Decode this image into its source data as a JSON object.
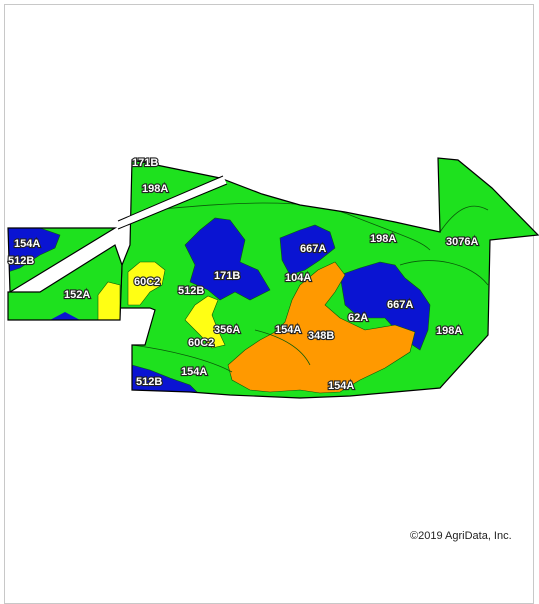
{
  "map": {
    "colors": {
      "green": "#1ee11e",
      "blue": "#0a14d2",
      "yellow": "#ffff14",
      "orange": "#ff9900",
      "boundary": "#000000",
      "road": "#ffffff"
    },
    "labels": {
      "l171B_top": "171B",
      "l198A_nw": "198A",
      "l154A_w": "154A",
      "l512B_w": "512B",
      "l152A": "152A",
      "l60C2_w": "60C2",
      "l512B_c": "512B",
      "l171B_c": "171B",
      "l667A_c": "667A",
      "l104A": "104A",
      "l198A_ne": "198A",
      "l3076A": "3076A",
      "l667A_e": "667A",
      "l62A": "62A",
      "l198A_e": "198A",
      "l356A": "356A",
      "l154A_c": "154A",
      "l348B": "348B",
      "l60C2_c": "60C2",
      "l512B_sw": "512B",
      "l154A_s": "154A",
      "l154A_se": "154A"
    },
    "copyright": "©2019 AgriData, Inc."
  }
}
